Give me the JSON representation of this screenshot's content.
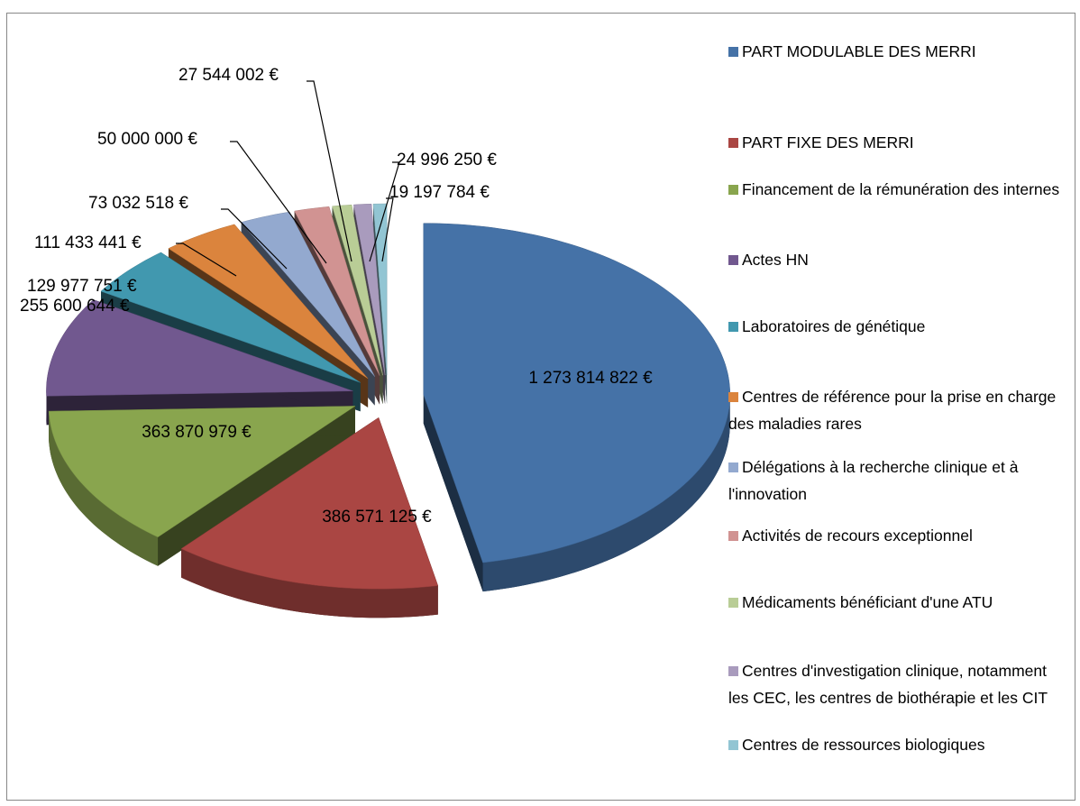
{
  "chart_data": {
    "type": "pie",
    "categories": [
      "PART MODULABLE DES MERRI",
      "PART FIXE DES MERRI",
      "Financement de la rémunération des internes",
      "Actes HN",
      "Laboratoires de génétique",
      "Centres de référence pour la prise en charge des maladies rares",
      "Délégations à la recherche clinique et à l'innovation",
      "Activités de recours exceptionnel",
      "Médicaments bénéficiant d'une ATU",
      "Centres d'investigation clinique, notamment les CEC, les centres de biothérapie et les CIT",
      "Centres de ressources biologiques"
    ],
    "values": [
      1273814822,
      386571125,
      363870979,
      255600644,
      129977751,
      111433441,
      73032518,
      50000000,
      27544002,
      24996250,
      19197784
    ],
    "value_labels": [
      "1 273 814 822 €",
      "386 571 125 €",
      "363 870 979 €",
      "255 600 644 €",
      "129 977 751 €",
      "111 433 441 €",
      "73 032 518 €",
      "50 000 000 €",
      "27 544 002 €",
      "24 996 250 €",
      "19 197 784 €"
    ],
    "colors": [
      "#4572a7",
      "#aa4643",
      "#89a54e",
      "#71588f",
      "#4198af",
      "#db843d",
      "#93a9cf",
      "#d19392",
      "#b9cd96",
      "#a99bbd",
      "#92c5d3"
    ],
    "legend": "right"
  }
}
